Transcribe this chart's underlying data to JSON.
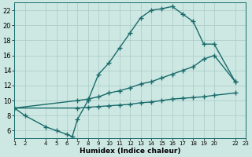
{
  "bg_color": "#cde8e3",
  "grid_color": "#aececa",
  "line_color": "#1a6b6b",
  "line_width": 1.0,
  "marker": "+",
  "marker_size": 4,
  "marker_ew": 1.0,
  "xlabel": "Humidex (Indice chaleur)",
  "xlim": [
    1,
    23
  ],
  "ylim": [
    5,
    23
  ],
  "xticks": [
    1,
    2,
    4,
    5,
    6,
    7,
    8,
    9,
    10,
    11,
    12,
    13,
    14,
    15,
    16,
    17,
    18,
    19,
    20,
    22,
    23
  ],
  "yticks": [
    6,
    8,
    10,
    12,
    14,
    16,
    18,
    20,
    22
  ],
  "line1_x": [
    1,
    2,
    4,
    5,
    6,
    6.5,
    7,
    8,
    9,
    10,
    11,
    12,
    13,
    14,
    15,
    16,
    17,
    18,
    19,
    20,
    22
  ],
  "line1_y": [
    9.0,
    8.0,
    6.5,
    6.0,
    5.5,
    5.2,
    7.5,
    10.0,
    13.5,
    15.0,
    17.0,
    19.0,
    21.0,
    22.0,
    22.2,
    22.5,
    21.5,
    20.5,
    17.5,
    17.5,
    12.5
  ],
  "line2_x": [
    1,
    7,
    8,
    9,
    10,
    11,
    12,
    13,
    14,
    15,
    16,
    17,
    18,
    19,
    20,
    22
  ],
  "line2_y": [
    9.0,
    10.0,
    10.2,
    10.5,
    11.0,
    11.3,
    11.7,
    12.2,
    12.5,
    13.0,
    13.5,
    14.0,
    14.5,
    15.5,
    16.0,
    12.5
  ],
  "line3_x": [
    1,
    7,
    8,
    9,
    10,
    11,
    12,
    13,
    14,
    15,
    16,
    17,
    18,
    19,
    20,
    22
  ],
  "line3_y": [
    9.0,
    9.0,
    9.1,
    9.2,
    9.3,
    9.4,
    9.5,
    9.7,
    9.8,
    10.0,
    10.2,
    10.3,
    10.4,
    10.5,
    10.7,
    11.0
  ]
}
